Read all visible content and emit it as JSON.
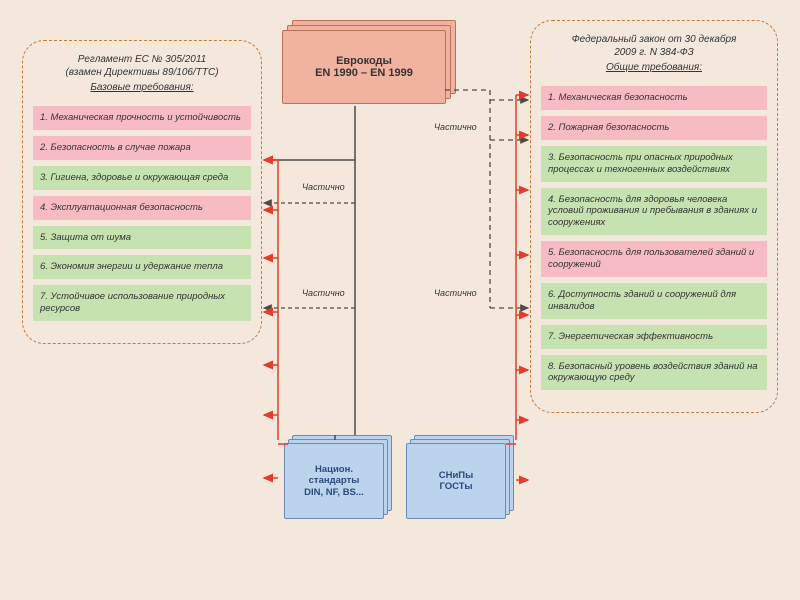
{
  "background": "#f4e8dd",
  "colors": {
    "pink": "#f7bcc3",
    "green": "#c6e2b0",
    "orange_doc": "#f2b2a0",
    "blue_doc": "#bcd3ee",
    "panel_border": "#c47b3a",
    "arrow_red": "#e63a2a",
    "arrow_dark": "#4b4b4b"
  },
  "eurocodes": {
    "line1": "Еврокоды",
    "line2": "EN 1990 – EN 1999"
  },
  "left_panel": {
    "title_l1": "Регламент ЕС № 305/2011",
    "title_l2": "(взамен Директивы 89/106/ТТС)",
    "title_u": "Базовые требования:",
    "items": [
      {
        "text": "1. Механическая прочность и устойчивость",
        "cls": "pink"
      },
      {
        "text": "2. Безопасность в случае пожара",
        "cls": "pink"
      },
      {
        "text": "3. Гигиена, здоровье и окружающая среда",
        "cls": "green"
      },
      {
        "text": "4. Эксплуатационная безопасность",
        "cls": "pink"
      },
      {
        "text": "5. Защита от шума",
        "cls": "green"
      },
      {
        "text": "6. Экономия энергии и удержание тепла",
        "cls": "green"
      },
      {
        "text": "7. Устойчивое использование природных ресурсов",
        "cls": "green"
      }
    ]
  },
  "right_panel": {
    "title_l1": "Федеральный закон от 30 декабря",
    "title_l2": "2009 г. N 384-ФЗ",
    "title_u": "Общие требования:",
    "items": [
      {
        "text": "1. Механическая безопасность",
        "cls": "pink"
      },
      {
        "text": "2. Пожарная безопасность",
        "cls": "pink"
      },
      {
        "text": "3. Безопасность при опасных природных процессах и техногенных воздействиях",
        "cls": "green"
      },
      {
        "text": "4. Безопасность для здоровья человека условий проживания и пребывания в зданиях и сооружениях",
        "cls": "green"
      },
      {
        "text": "5. Безопасность для пользователей зданий и сооружений",
        "cls": "pink"
      },
      {
        "text": "6. Доступность зданий и сооружений для инвалидов",
        "cls": "green"
      },
      {
        "text": "7. Энергетическая эффективность",
        "cls": "green"
      },
      {
        "text": "8. Безопасный уровень воздействия зданий на окружающую среду",
        "cls": "green"
      }
    ]
  },
  "bluebox1": {
    "line1": "Национ.",
    "line2": "стандарты",
    "line3": "DIN, NF, BS..."
  },
  "bluebox2": {
    "line1": "СНиПы",
    "line2": "ГОСТы"
  },
  "partial_label": "Частично"
}
